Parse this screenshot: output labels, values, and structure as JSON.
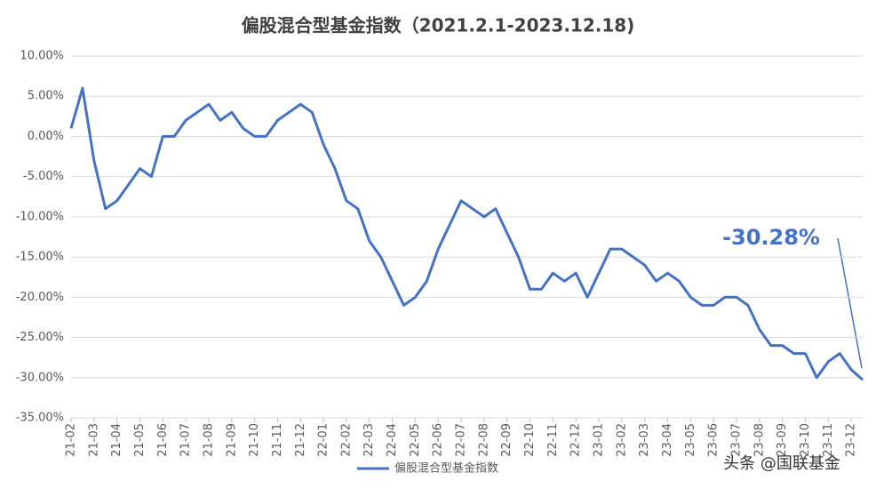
{
  "chart_data": {
    "type": "line",
    "title": "偏股混合型基金指数（2021.2.1-2023.12.18)",
    "annotation": "-30.28%",
    "watermark": "头条 @国联基金",
    "categories": [
      "21-02",
      null,
      "21-03",
      null,
      "21-04",
      null,
      "21-05",
      null,
      "21-06",
      null,
      "21-07",
      null,
      "21-08",
      null,
      "21-09",
      null,
      "21-10",
      null,
      "21-11",
      null,
      "21-12",
      null,
      "22-01",
      null,
      "22-02",
      null,
      "22-03",
      null,
      "22-04",
      null,
      "22-05",
      null,
      "22-06",
      null,
      "22-07",
      null,
      "22-08",
      null,
      "22-09",
      null,
      "22-10",
      null,
      "22-11",
      null,
      "22-12",
      null,
      "23-01",
      null,
      "23-02",
      null,
      "23-03",
      null,
      "23-04",
      null,
      "23-05",
      null,
      "23-06",
      null,
      "23-07",
      null,
      "23-08",
      null,
      "23-09",
      null,
      "23-10",
      null,
      "23-11",
      null,
      "23-12",
      null
    ],
    "series": [
      {
        "name": "偏股混合型基金指数",
        "color": "#4472c4",
        "values": [
          1,
          6,
          -3,
          -9,
          -8,
          -6,
          -4,
          -5,
          0,
          0,
          2,
          3,
          4,
          2,
          3,
          1,
          0,
          0,
          2,
          3,
          4,
          3,
          -1,
          -4,
          -8,
          -9,
          -13,
          -15,
          -18,
          -21,
          -20,
          -18,
          -14,
          -11,
          -8,
          -9,
          -10,
          -9,
          -12,
          -15,
          -19,
          -19,
          -17,
          -18,
          -17,
          -20,
          -17,
          -14,
          -14,
          -15,
          -16,
          -18,
          -17,
          -18,
          -20,
          -21,
          -21,
          -20,
          -20,
          -21,
          -24,
          -26,
          -26,
          -27,
          -27,
          -30,
          -28,
          -27,
          -29,
          -30.28
        ]
      }
    ],
    "ylim": [
      -35,
      10
    ],
    "yticks": [
      {
        "value": 10,
        "label": "10.00%"
      },
      {
        "value": 5,
        "label": "5.00%"
      },
      {
        "value": 0,
        "label": "0.00%"
      },
      {
        "value": -5,
        "label": "-5.00%"
      },
      {
        "value": -10,
        "label": "-10.00%"
      },
      {
        "value": -15,
        "label": "-15.00%"
      },
      {
        "value": -20,
        "label": "-20.00%"
      },
      {
        "value": -25,
        "label": "-25.00%"
      },
      {
        "value": -30,
        "label": "-30.00%"
      },
      {
        "value": -35,
        "label": "-35.00%"
      }
    ],
    "grid": true
  }
}
